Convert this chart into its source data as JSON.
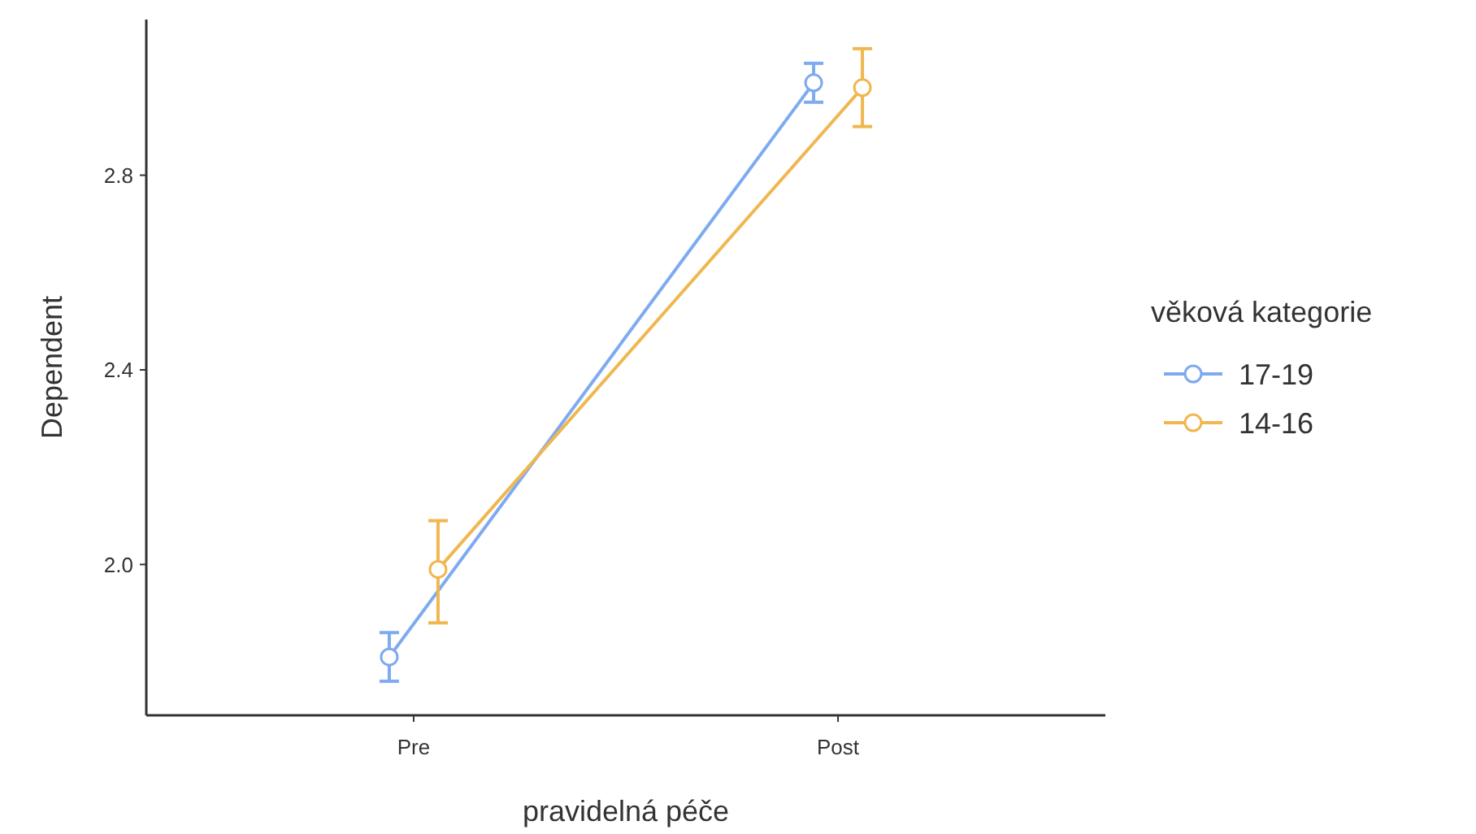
{
  "chart_data": {
    "type": "line",
    "xlabel": "pravidelná péče",
    "ylabel": "Dependent",
    "legend_title": "věková kategorie",
    "categories": [
      "Pre",
      "Post"
    ],
    "series": [
      {
        "name": "17-19",
        "color": "#7eaaf0",
        "values": [
          1.81,
          2.99
        ],
        "errors": [
          [
            1.76,
            1.86
          ],
          [
            2.95,
            3.03
          ]
        ]
      },
      {
        "name": "14-16",
        "color": "#f0b750",
        "values": [
          1.99,
          2.98
        ],
        "errors": [
          [
            1.88,
            2.09
          ],
          [
            2.9,
            3.06
          ]
        ]
      }
    ],
    "ylim": [
      1.69,
      3.12
    ],
    "yticks": [
      {
        "value": 2,
        "label": "2.0"
      },
      {
        "value": 2.4,
        "label": "2.4"
      },
      {
        "value": 2.8,
        "label": "2.8"
      }
    ],
    "grid": false,
    "legend": "right",
    "marker": "circle",
    "line_style": "solid"
  }
}
